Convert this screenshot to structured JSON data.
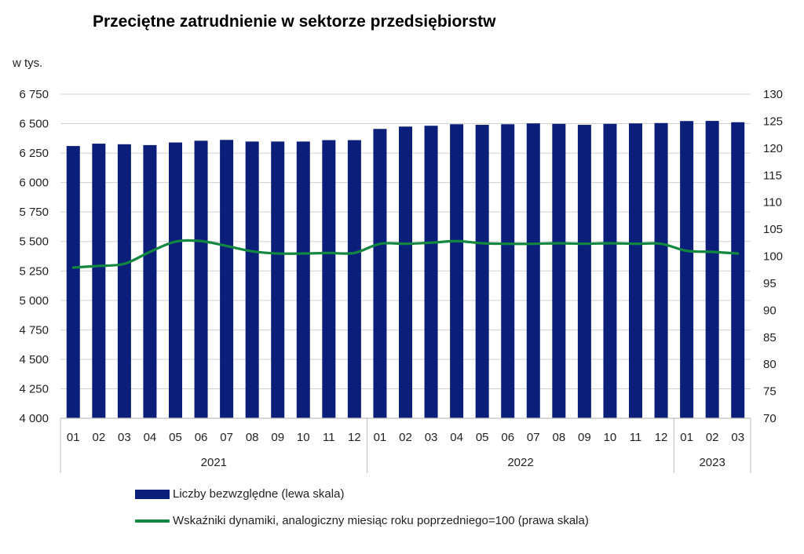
{
  "title": "Przeciętne zatrudnienie w sektorze przedsiębiorstw",
  "unit_label": "w tys.",
  "colors": {
    "bars": "#0b1f7a",
    "line": "#12873f",
    "grid": "#d0d0d0",
    "axis": "#bdbdbd"
  },
  "chart_data": {
    "type": "bar",
    "title": "Przeciętne zatrudnienie w sektorze przedsiębiorstw",
    "categories": [
      "01",
      "02",
      "03",
      "04",
      "05",
      "06",
      "07",
      "08",
      "09",
      "10",
      "11",
      "12",
      "01",
      "02",
      "03",
      "04",
      "05",
      "06",
      "07",
      "08",
      "09",
      "10",
      "11",
      "12",
      "01",
      "02",
      "03"
    ],
    "groups": [
      {
        "label": "2021",
        "count": 12
      },
      {
        "label": "2022",
        "count": 12
      },
      {
        "label": "2023",
        "count": 3
      }
    ],
    "left_axis": {
      "label": "w tys.",
      "ylim": [
        4000,
        6750
      ],
      "ticks": [
        4000,
        4250,
        4500,
        4750,
        5000,
        5250,
        5500,
        5750,
        6000,
        6250,
        6500,
        6750
      ],
      "tick_labels": [
        "4 000",
        "4 250",
        "4 500",
        "4 750",
        "5 000",
        "5 250",
        "5 500",
        "5 750",
        "6 000",
        "6 250",
        "6 500",
        "6 750"
      ]
    },
    "right_axis": {
      "ylim": [
        70,
        130
      ],
      "ticks": [
        70,
        75,
        80,
        85,
        90,
        95,
        100,
        105,
        110,
        115,
        120,
        125,
        130
      ],
      "tick_labels": [
        "70",
        "75",
        "80",
        "85",
        "90",
        "95",
        "100",
        "105",
        "110",
        "115",
        "120",
        "125",
        "130"
      ]
    },
    "grid": true,
    "legend_position": "bottom",
    "series": [
      {
        "name": "Liczby bezwzględne (lewa skala)",
        "type": "bar",
        "axis": "left",
        "values": [
          6310,
          6330,
          6325,
          6318,
          6340,
          6355,
          6362,
          6348,
          6348,
          6348,
          6360,
          6360,
          6455,
          6475,
          6482,
          6495,
          6490,
          6495,
          6502,
          6498,
          6490,
          6498,
          6502,
          6505,
          6522,
          6523,
          6512
        ]
      },
      {
        "name": "Wskaźniki dynamiki, analogiczny miesiąc roku poprzedniego=100 (prawa skala)",
        "type": "line",
        "axis": "right",
        "values": [
          97.9,
          98.2,
          98.6,
          100.8,
          102.7,
          102.8,
          101.9,
          100.9,
          100.5,
          100.5,
          100.6,
          100.6,
          102.3,
          102.3,
          102.5,
          102.8,
          102.4,
          102.3,
          102.3,
          102.4,
          102.3,
          102.4,
          102.3,
          102.3,
          101.0,
          100.8,
          100.5
        ]
      }
    ]
  }
}
